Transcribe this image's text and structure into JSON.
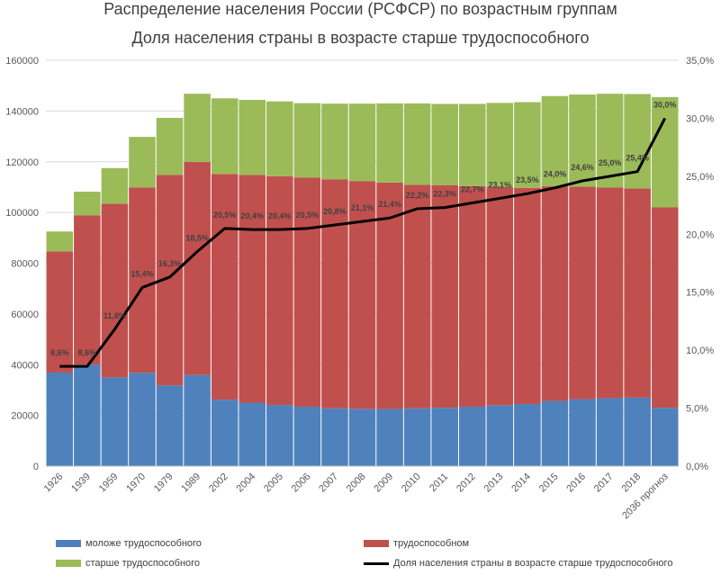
{
  "chart_data": {
    "type": "bar",
    "stacked": true,
    "title": "Распределение населения России (РСФСР) по возрастным группам",
    "subtitle": "Доля населения страны в возрасте старше трудоспособного",
    "categories": [
      "1926",
      "1939",
      "1959",
      "1970",
      "1979",
      "1989",
      "2002",
      "2004",
      "2005",
      "2006",
      "2007",
      "2008",
      "2009",
      "2010",
      "2011",
      "2012",
      "2013",
      "2014",
      "2015",
      "2016",
      "2017",
      "2018",
      "2036 прогноз"
    ],
    "series": [
      {
        "name": "моложе трудоспособного",
        "color": "#4f81bd",
        "values": [
          36900,
          40000,
          35000,
          36800,
          31800,
          35900,
          26200,
          25000,
          24100,
          23400,
          22800,
          22600,
          22500,
          22800,
          23000,
          23400,
          24000,
          24500,
          25700,
          26400,
          26800,
          27000,
          23000
        ]
      },
      {
        "name": "трудоспособном",
        "color": "#c0504d",
        "values": [
          47700,
          58900,
          68500,
          73100,
          83000,
          84000,
          89000,
          89800,
          90200,
          90400,
          90300,
          89800,
          89300,
          88100,
          87800,
          87000,
          86100,
          85200,
          84600,
          83800,
          83000,
          82500,
          79000
        ]
      },
      {
        "name": "старше трудоспособного",
        "color": "#9bbb59",
        "values": [
          7900,
          9300,
          14000,
          19900,
          22500,
          26900,
          29800,
          29600,
          29500,
          29300,
          29800,
          30500,
          31200,
          32100,
          32000,
          32400,
          33100,
          33800,
          35600,
          36300,
          37000,
          37200,
          43500
        ]
      }
    ],
    "line_series": {
      "name": "Доля населения страны в возрасте старше трудоспособного",
      "color": "#000000",
      "values": [
        8.6,
        8.6,
        11.8,
        15.4,
        16.3,
        18.5,
        20.5,
        20.4,
        20.4,
        20.5,
        20.8,
        21.1,
        21.4,
        22.2,
        22.3,
        22.7,
        23.1,
        23.5,
        24.0,
        24.6,
        25.0,
        25.4,
        30.0
      ],
      "labels": [
        "8,6%",
        "8,6%",
        "11,8%",
        "15,4%",
        "16,3%",
        "18,5%",
        "20,5%",
        "20,4%",
        "20,4%",
        "20,5%",
        "20,8%",
        "21,1%",
        "21,4%",
        "22,2%",
        "22,3%",
        "22,7%",
        "23,1%",
        "23,5%",
        "24,0%",
        "24,6%",
        "25,0%",
        "25,4%",
        "30,0%"
      ]
    },
    "y_left": {
      "min": 0,
      "max": 160000,
      "ticks": [
        "0",
        "20000",
        "40000",
        "60000",
        "80000",
        "100000",
        "120000",
        "140000",
        "160000"
      ]
    },
    "y_right": {
      "min": 0,
      "max": 35,
      "ticks": [
        "0,0%",
        "5,0%",
        "10,0%",
        "15,0%",
        "20,0%",
        "25,0%",
        "30,0%",
        "35,0%"
      ]
    },
    "grid": true,
    "legend_position": "bottom"
  }
}
